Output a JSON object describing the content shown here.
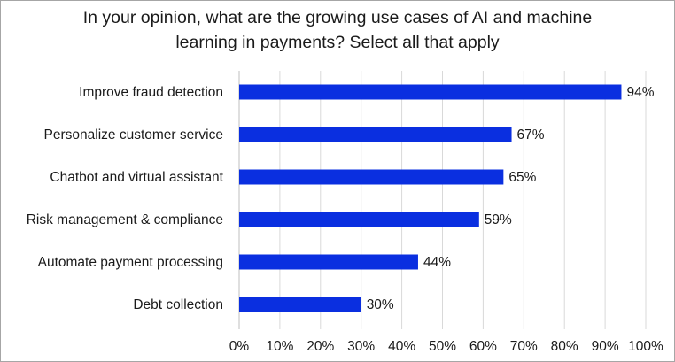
{
  "chart_data": {
    "type": "bar",
    "orientation": "horizontal",
    "title_lines": [
      "In your opinion, what are the growing use cases of AI and machine",
      "learning in payments? Select all that apply"
    ],
    "categories": [
      "Improve fraud detection",
      "Personalize customer service",
      "Chatbot and virtual assistant",
      "Risk management & compliance",
      "Automate payment processing",
      "Debt collection"
    ],
    "values": [
      94,
      67,
      65,
      59,
      44,
      30
    ],
    "value_labels": [
      "94%",
      "67%",
      "65%",
      "59%",
      "44%",
      "30%"
    ],
    "xlim": [
      0,
      100
    ],
    "x_ticks": [
      "0%",
      "10%",
      "20%",
      "30%",
      "40%",
      "50%",
      "60%",
      "70%",
      "80%",
      "90%",
      "100%"
    ],
    "grid": "vertical",
    "legend": "none",
    "bar_color": "#0a2fe0",
    "grid_color": "#d9d9d9"
  }
}
